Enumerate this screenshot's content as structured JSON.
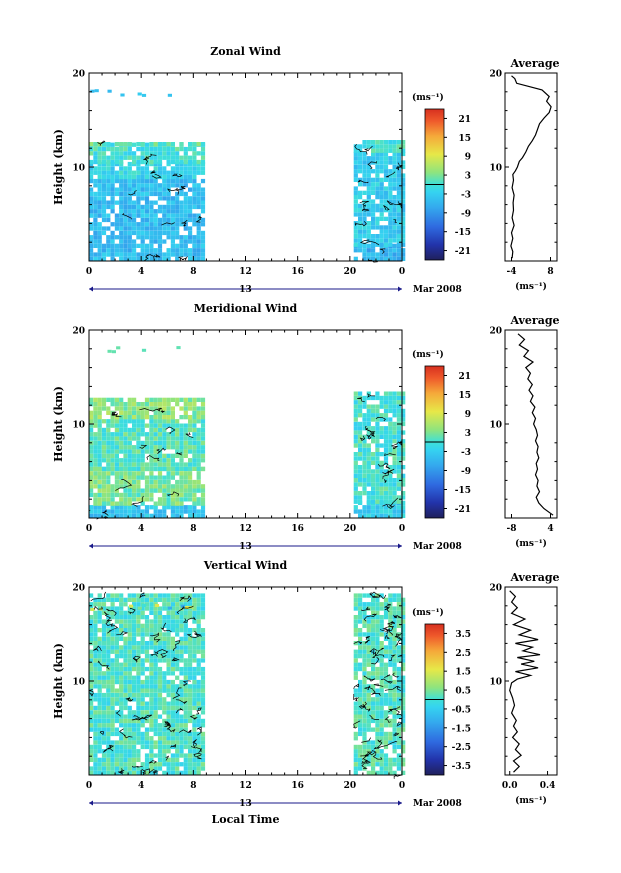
{
  "chart_data": [
    {
      "type": "heatmap",
      "title": "Zonal Wind",
      "ylabel": "Height (km)",
      "unit": "(ms⁻¹)",
      "x_ticks": [
        "0",
        "4",
        "8",
        "12",
        "16",
        "20",
        "0"
      ],
      "y_ticks": [
        "20",
        "10"
      ],
      "date_day": "13",
      "date_label": "Mar 2008",
      "colorbar_ticks": [
        "21",
        "15",
        "9",
        "3",
        "-3",
        "-9",
        "-15",
        "-21"
      ],
      "colorbar_range": [
        -24,
        24
      ],
      "dominant_value": -4,
      "data_segments": [
        {
          "x": [
            0,
            8.6
          ],
          "bands": [
            {
              "y": [
                0,
                8.7
              ],
              "value": -5
            },
            {
              "y": [
                8.7,
                10.3
              ],
              "value": -2
            },
            {
              "y": [
                10.3,
                12.2
              ],
              "value": 0
            },
            {
              "y": [
                12.2,
                12.6
              ],
              "value": 2
            }
          ]
        },
        {
          "x": [
            20.3,
            24
          ],
          "bands": [
            {
              "y": [
                0,
                1.5
              ],
              "value": -6
            },
            {
              "y": [
                1.5,
                11.5
              ],
              "value": -3
            },
            {
              "y": [
                11.5,
                12.5
              ],
              "value": 0
            }
          ]
        }
      ],
      "average": {
        "title": "Average",
        "x_ticks": [
          "-4",
          "8"
        ],
        "y_ticks": [
          "20",
          "10"
        ],
        "xlim": [
          -6,
          10
        ],
        "unit": "(ms⁻¹)",
        "profile": [
          [
            -3.8,
            0.3
          ],
          [
            -3.6,
            1
          ],
          [
            -4.2,
            1.6
          ],
          [
            -3.6,
            2.4
          ],
          [
            -4.0,
            3
          ],
          [
            -3.2,
            3.8
          ],
          [
            -3.8,
            4.6
          ],
          [
            -3.4,
            5.4
          ],
          [
            -3.5,
            6.2
          ],
          [
            -3.2,
            7
          ],
          [
            -3.8,
            7.8
          ],
          [
            -3.4,
            8.6
          ],
          [
            -3.6,
            9.2
          ],
          [
            -2.8,
            9.6
          ],
          [
            -2.2,
            10
          ],
          [
            -1.6,
            10.6
          ],
          [
            -0.6,
            11
          ],
          [
            0.4,
            11.6
          ],
          [
            1.2,
            12.2
          ],
          [
            2.4,
            12.8
          ],
          [
            3.4,
            13.4
          ],
          [
            4.0,
            14
          ],
          [
            4.6,
            14.6
          ],
          [
            6.0,
            15.2
          ],
          [
            7.6,
            15.8
          ],
          [
            8.2,
            16.4
          ],
          [
            6.8,
            17
          ],
          [
            7.6,
            17.5
          ],
          [
            5.4,
            18.2
          ],
          [
            1.0,
            18.6
          ],
          [
            -2.4,
            18.9
          ],
          [
            -3.0,
            19.4
          ],
          [
            -4.0,
            19.7
          ]
        ]
      }
    },
    {
      "type": "heatmap",
      "title": "Meridional Wind",
      "ylabel": "Height (km)",
      "unit": "(ms⁻¹)",
      "x_ticks": [
        "0",
        "4",
        "8",
        "12",
        "16",
        "20",
        "0"
      ],
      "y_ticks": [
        "20",
        "10"
      ],
      "date_day": "13",
      "date_label": "Mar 2008",
      "colorbar_ticks": [
        "21",
        "15",
        "9",
        "3",
        "-3",
        "-9",
        "-15",
        "-21"
      ],
      "colorbar_range": [
        -24,
        24
      ],
      "dominant_value": 1,
      "data_segments": [
        {
          "x": [
            0,
            8.6
          ],
          "bands": [
            {
              "y": [
                0,
                1.3
              ],
              "value": -4
            },
            {
              "y": [
                1.3,
                5
              ],
              "value": 3
            },
            {
              "y": [
                5,
                10.5
              ],
              "value": 1
            },
            {
              "y": [
                10.5,
                12.4
              ],
              "value": 4
            }
          ]
        },
        {
          "x": [
            20.3,
            24
          ],
          "bands": [
            {
              "y": [
                0,
                1.5
              ],
              "value": -3
            },
            {
              "y": [
                1.5,
                13.3
              ],
              "value": 0
            }
          ]
        }
      ],
      "average": {
        "title": "Average",
        "x_ticks": [
          "-8",
          "4"
        ],
        "y_ticks": [
          "20",
          "10"
        ],
        "xlim": [
          -10,
          6
        ],
        "unit": "(ms⁻¹)",
        "profile": [
          [
            4.8,
            0.3
          ],
          [
            2.0,
            1
          ],
          [
            0.4,
            1.6
          ],
          [
            -0.4,
            2.2
          ],
          [
            0.6,
            2.8
          ],
          [
            -0.2,
            3.4
          ],
          [
            0.2,
            4
          ],
          [
            -0.6,
            4.6
          ],
          [
            0.0,
            5.2
          ],
          [
            -0.4,
            5.8
          ],
          [
            0.4,
            6.4
          ],
          [
            -0.2,
            7
          ],
          [
            0.2,
            7.6
          ],
          [
            -0.6,
            8.2
          ],
          [
            0.0,
            8.8
          ],
          [
            -0.4,
            9.4
          ],
          [
            -1.2,
            10
          ],
          [
            -0.6,
            10.6
          ],
          [
            -1.6,
            11.2
          ],
          [
            -0.8,
            11.8
          ],
          [
            -2.2,
            12.4
          ],
          [
            -1.4,
            13
          ],
          [
            -2.6,
            13.6
          ],
          [
            -1.6,
            14.2
          ],
          [
            -3.0,
            14.8
          ],
          [
            -2.2,
            15.4
          ],
          [
            -3.6,
            16
          ],
          [
            -1.4,
            16.6
          ],
          [
            -4.2,
            17.2
          ],
          [
            -2.8,
            17.8
          ],
          [
            -5.6,
            18.4
          ],
          [
            -4.0,
            19
          ],
          [
            -6.0,
            19.6
          ]
        ]
      }
    },
    {
      "type": "heatmap",
      "title": "Vertical Wind",
      "ylabel": "Height (km)",
      "xlabel": "Local Time",
      "unit": "(ms⁻¹)",
      "x_ticks": [
        "0",
        "4",
        "8",
        "12",
        "16",
        "20",
        "0"
      ],
      "y_ticks": [
        "20",
        "10"
      ],
      "date_day": "13",
      "date_label": "Mar 2008",
      "colorbar_ticks": [
        "3.5",
        "2.5",
        "1.5",
        "0.5",
        "-0.5",
        "-1.5",
        "-2.5",
        "-3.5"
      ],
      "colorbar_range": [
        -4,
        4
      ],
      "dominant_value": 0.1,
      "data_segments": [
        {
          "x": [
            0,
            8.6
          ],
          "bands": [
            {
              "y": [
                0,
                19.3
              ],
              "value": 0.1
            }
          ]
        },
        {
          "x": [
            20.3,
            24
          ],
          "bands": [
            {
              "y": [
                0,
                19.3
              ],
              "value": 0.1
            }
          ]
        }
      ],
      "average": {
        "title": "Average",
        "x_ticks": [
          "0.0",
          "0.4"
        ],
        "y_ticks": [
          "20",
          "10"
        ],
        "xlim": [
          -0.05,
          0.5
        ],
        "unit": "(ms⁻¹)",
        "profile": [
          [
            0.04,
            0.3
          ],
          [
            0.1,
            0.9
          ],
          [
            0.04,
            1.5
          ],
          [
            0.12,
            2.1
          ],
          [
            0.06,
            2.7
          ],
          [
            0.1,
            3.3
          ],
          [
            0.03,
            4
          ],
          [
            0.08,
            4.6
          ],
          [
            0.04,
            5.2
          ],
          [
            0.07,
            5.8
          ],
          [
            0.02,
            6.6
          ],
          [
            0.05,
            7.4
          ],
          [
            0.03,
            8.2
          ],
          [
            0.0,
            9
          ],
          [
            0.02,
            9.8
          ],
          [
            0.08,
            10.2
          ],
          [
            0.22,
            10.6
          ],
          [
            0.06,
            11
          ],
          [
            0.3,
            11.4
          ],
          [
            0.12,
            11.8
          ],
          [
            0.26,
            12.1
          ],
          [
            0.08,
            12.5
          ],
          [
            0.32,
            12.8
          ],
          [
            0.14,
            13.2
          ],
          [
            0.24,
            13.6
          ],
          [
            0.06,
            14
          ],
          [
            0.3,
            14.4
          ],
          [
            0.1,
            14.9
          ],
          [
            0.22,
            15.4
          ],
          [
            0.04,
            16
          ],
          [
            0.16,
            16.6
          ],
          [
            0.02,
            17.2
          ],
          [
            0.08,
            17.8
          ],
          [
            0.02,
            18.4
          ],
          [
            0.06,
            19
          ],
          [
            0.0,
            19.6
          ]
        ]
      }
    }
  ]
}
